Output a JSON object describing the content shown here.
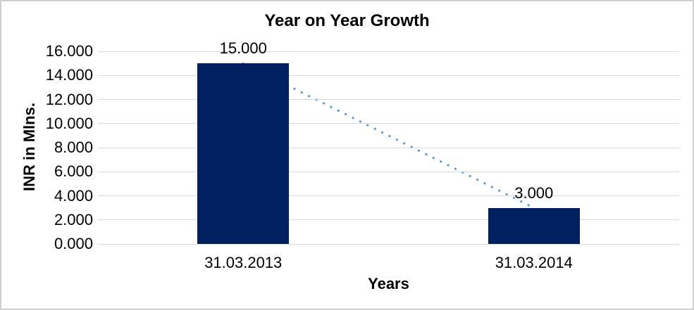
{
  "chart_data": {
    "type": "bar",
    "title": "Year on Year Growth",
    "xlabel": "Years",
    "ylabel": "INR in Mlns.",
    "categories": [
      "31.03.2013",
      "31.03.2014"
    ],
    "values": [
      15.0,
      3.0
    ],
    "data_labels": [
      "15.000",
      "3.000"
    ],
    "ylim": [
      0,
      16
    ],
    "yticks": [
      {
        "v": 0,
        "label": "0.000"
      },
      {
        "v": 2,
        "label": "2.000"
      },
      {
        "v": 4,
        "label": "4.000"
      },
      {
        "v": 6,
        "label": "6.000"
      },
      {
        "v": 8,
        "label": "8.000"
      },
      {
        "v": 10,
        "label": "10.000"
      },
      {
        "v": 12,
        "label": "12.000"
      },
      {
        "v": 14,
        "label": "14.000"
      },
      {
        "v": 16,
        "label": "16.000"
      }
    ],
    "grid": true,
    "legend": "none",
    "trendline": {
      "style": "dotted",
      "from_series_point": 0,
      "to_series_point": 1
    },
    "colors": {
      "bar": "#002060",
      "trendline": "#5B9BD5",
      "gridline": "#D9D9D9",
      "text": "#000000",
      "border": "#CFCFCF",
      "background": "#FFFFFF"
    }
  }
}
